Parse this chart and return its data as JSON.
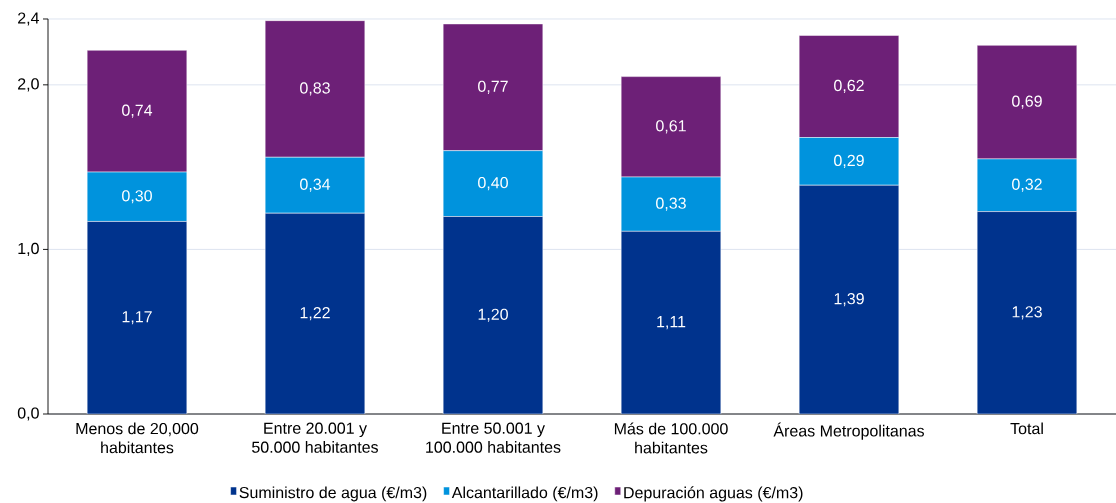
{
  "chart_data": {
    "type": "bar",
    "stacked": true,
    "categories": [
      "Menos de 20,000 habitantes",
      "Entre 20.001 y 50.000 habitantes",
      "Entre 50.001 y 100.000 habitantes",
      "Más de 100.000 habitantes",
      "Áreas Metropolitanas",
      "Total"
    ],
    "series": [
      {
        "name": "Suministro de agua (€/m3)",
        "color": "#00338d",
        "values": [
          1.17,
          1.22,
          1.2,
          1.11,
          1.39,
          1.23
        ],
        "value_labels": [
          "1,17",
          "1,22",
          "1,20",
          "1,11",
          "1,39",
          "1,23"
        ]
      },
      {
        "name": "Alcantarillado (€/m3)",
        "color": "#0093dd",
        "values": [
          0.3,
          0.34,
          0.4,
          0.33,
          0.29,
          0.32
        ],
        "value_labels": [
          "0,30",
          "0,34",
          "0,40",
          "0,33",
          "0,29",
          "0,32"
        ]
      },
      {
        "name": "Depuración aguas (€/m3)",
        "color": "#6d2077",
        "values": [
          0.74,
          0.83,
          0.77,
          0.61,
          0.62,
          0.69
        ],
        "value_labels": [
          "0,74",
          "0,83",
          "0,77",
          "0,61",
          "0,62",
          "0,69"
        ]
      }
    ],
    "ylim": [
      0,
      2.4
    ],
    "yticks": [
      {
        "value": 0,
        "label": "0,0"
      },
      {
        "value": 1,
        "label": "1,0"
      },
      {
        "value": 2,
        "label": "2,0"
      },
      {
        "value": 2.4,
        "label": "2,4"
      }
    ],
    "grid": "y",
    "legend": "bottom"
  }
}
